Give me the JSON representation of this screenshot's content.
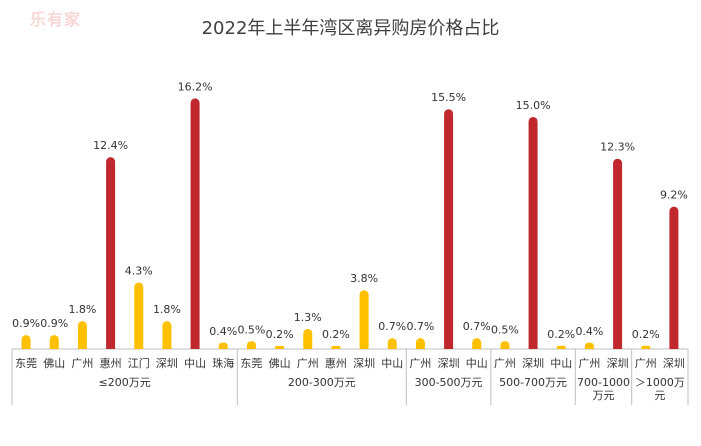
{
  "title": "2022年上半年湾区离异购房价格占比",
  "watermark": "乐有家",
  "colors": {
    "normal": "#FFC000",
    "highlight": "#C0282E",
    "axis": "#BFBFBF"
  },
  "chart_data": {
    "type": "bar",
    "title": "2022年上半年湾区离异购房价格占比",
    "ylim": [
      0,
      17
    ],
    "grid": false,
    "groups": [
      {
        "label": "≤200万元",
        "bars": [
          {
            "city": "东莞",
            "value": 0.9,
            "label": "0.9%"
          },
          {
            "city": "佛山",
            "value": 0.9,
            "label": "0.9%"
          },
          {
            "city": "广州",
            "value": 1.8,
            "label": "1.8%"
          },
          {
            "city": "惠州",
            "value": 12.4,
            "label": "12.4%",
            "highlight": true
          },
          {
            "city": "江门",
            "value": 4.3,
            "label": "4.3%"
          },
          {
            "city": "深圳",
            "value": 1.8,
            "label": "1.8%"
          },
          {
            "city": "中山",
            "value": 16.2,
            "label": "16.2%",
            "highlight": true
          },
          {
            "city": "珠海",
            "value": 0.4,
            "label": "0.4%"
          }
        ]
      },
      {
        "label": "200-300万元",
        "bars": [
          {
            "city": "东莞",
            "value": 0.5,
            "label": "0.5%"
          },
          {
            "city": "佛山",
            "value": 0.2,
            "label": "0.2%"
          },
          {
            "city": "广州",
            "value": 1.3,
            "label": "1.3%"
          },
          {
            "city": "惠州",
            "value": 0.2,
            "label": "0.2%"
          },
          {
            "city": "深圳",
            "value": 3.8,
            "label": "3.8%"
          },
          {
            "city": "中山",
            "value": 0.7,
            "label": "0.7%"
          }
        ]
      },
      {
        "label": "300-500万元",
        "bars": [
          {
            "city": "广州",
            "value": 0.7,
            "label": "0.7%"
          },
          {
            "city": "深圳",
            "value": 15.5,
            "label": "15.5%",
            "highlight": true
          },
          {
            "city": "中山",
            "value": 0.7,
            "label": "0.7%"
          }
        ]
      },
      {
        "label": "500-700万元",
        "bars": [
          {
            "city": "广州",
            "value": 0.5,
            "label": "0.5%"
          },
          {
            "city": "深圳",
            "value": 15.0,
            "label": "15.0%",
            "highlight": true
          },
          {
            "city": "中山",
            "value": 0.2,
            "label": "0.2%"
          }
        ]
      },
      {
        "label": [
          "700-1000",
          "万元"
        ],
        "bars": [
          {
            "city": "广州",
            "value": 0.4,
            "label": "0.4%"
          },
          {
            "city": "深圳",
            "value": 12.3,
            "label": "12.3%",
            "highlight": true
          }
        ]
      },
      {
        "label": [
          "＞1000万",
          "元"
        ],
        "bars": [
          {
            "city": "广州",
            "value": 0.2,
            "label": "0.2%"
          },
          {
            "city": "深圳",
            "value": 9.2,
            "label": "9.2%",
            "highlight": true
          }
        ]
      }
    ]
  }
}
